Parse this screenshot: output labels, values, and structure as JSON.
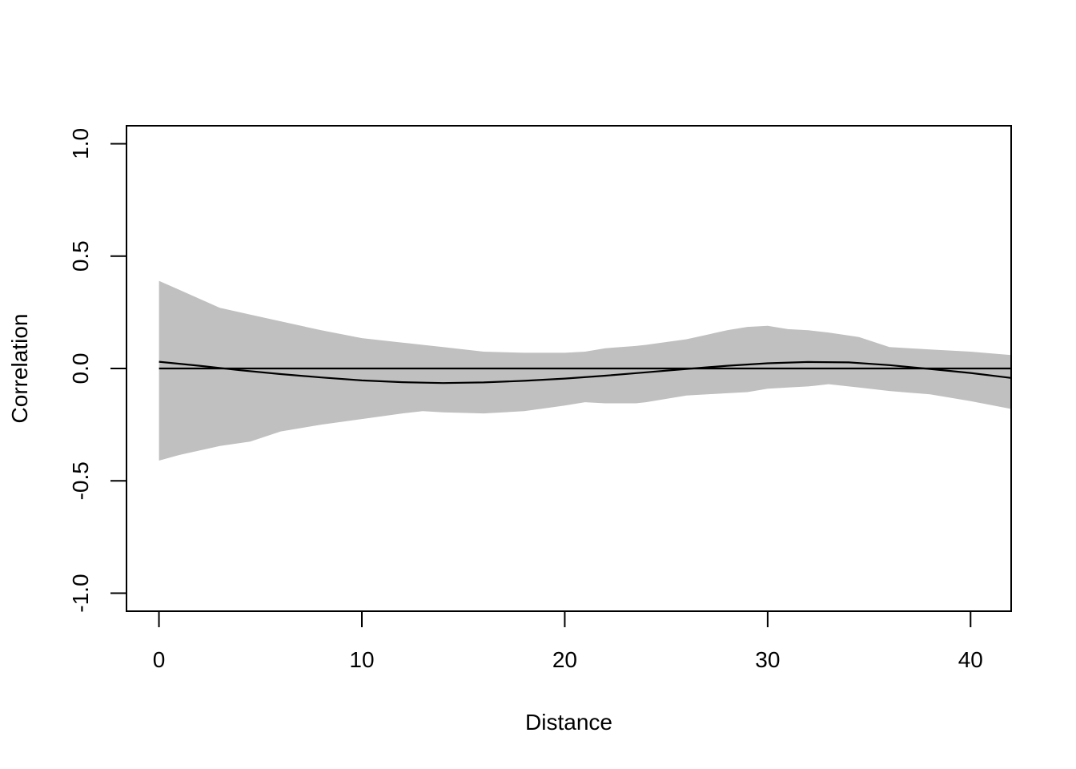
{
  "chart_data": {
    "type": "line",
    "title": "",
    "xlabel": "Distance",
    "ylabel": "Correlation",
    "xlim": [
      -1.6,
      42
    ],
    "ylim": [
      -1.08,
      1.08
    ],
    "x_ticks": [
      0,
      10,
      20,
      30,
      40
    ],
    "x_tick_labels": [
      "0",
      "10",
      "20",
      "30",
      "40"
    ],
    "y_ticks": [
      -1.0,
      -0.5,
      0.0,
      0.5,
      1.0
    ],
    "y_tick_labels": [
      "-1.0",
      "-0.5",
      "0.0",
      "0.5",
      "1.0"
    ],
    "grid": false,
    "legend": "none",
    "band": {
      "color": "#c0c0c0",
      "x": [
        0,
        1,
        2,
        3,
        4.5,
        6,
        8,
        10,
        12,
        13,
        14,
        16,
        18,
        20,
        21,
        22,
        23.5,
        24,
        26,
        28,
        29,
        30,
        31,
        32,
        33,
        34.5,
        36,
        38,
        40,
        42
      ],
      "upper": [
        0.39,
        0.35,
        0.31,
        0.27,
        0.24,
        0.21,
        0.17,
        0.135,
        0.115,
        0.105,
        0.095,
        0.075,
        0.07,
        0.07,
        0.075,
        0.09,
        0.1,
        0.105,
        0.13,
        0.17,
        0.185,
        0.19,
        0.175,
        0.17,
        0.16,
        0.14,
        0.095,
        0.085,
        0.075,
        0.06
      ],
      "lower": [
        -0.41,
        -0.385,
        -0.365,
        -0.345,
        -0.325,
        -0.28,
        -0.25,
        -0.225,
        -0.2,
        -0.19,
        -0.195,
        -0.2,
        -0.19,
        -0.165,
        -0.15,
        -0.155,
        -0.155,
        -0.15,
        -0.12,
        -0.11,
        -0.105,
        -0.09,
        -0.085,
        -0.08,
        -0.07,
        -0.085,
        -0.1,
        -0.115,
        -0.145,
        -0.18
      ]
    },
    "series": [
      {
        "color": "#000000",
        "x": [
          0,
          2,
          4,
          6,
          8,
          10,
          12,
          14,
          16,
          18,
          20,
          22,
          24,
          26,
          28,
          30,
          32,
          34,
          36,
          38,
          40,
          42
        ],
        "values": [
          0.03,
          0.012,
          -0.008,
          -0.025,
          -0.04,
          -0.053,
          -0.061,
          -0.065,
          -0.062,
          -0.055,
          -0.045,
          -0.032,
          -0.017,
          -0.002,
          0.012,
          0.023,
          0.029,
          0.027,
          0.015,
          -0.002,
          -0.02,
          -0.042
        ]
      },
      {
        "color": "#000000",
        "x": [
          0,
          42
        ],
        "values": [
          0,
          0
        ]
      }
    ]
  }
}
